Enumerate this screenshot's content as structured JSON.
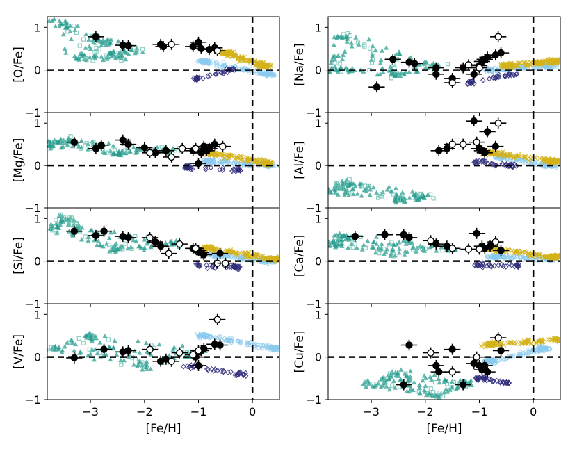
{
  "chart_data": {
    "type": "scatter",
    "xlabel": "[Fe/H]",
    "xlim": [
      -3.8,
      0.5
    ],
    "ylim": [
      -1,
      1.25
    ],
    "x_ticks": [
      -3,
      -2,
      -1,
      0
    ],
    "x_tick_labels": [
      "−3",
      "−2",
      "−1",
      "0"
    ],
    "y_ticks": [
      -1,
      0,
      1
    ],
    "y_tick_labels": [
      "−1",
      "0",
      "1"
    ],
    "reference_lines": {
      "x": 0,
      "y": 0
    },
    "colors": {
      "halo_triangles": "#2a9d8f",
      "halo_squares": "#6fc2b4",
      "thick_disk": "#d4b21a",
      "thin_disk": "#89c9ee",
      "low_alpha": "#2e2a7a",
      "filled_target": "#000000",
      "open_target": "#ffffff"
    },
    "panels": [
      {
        "ylabel": "[O/Fe]",
        "filled": [
          [
            -2.9,
            0.78
          ],
          [
            -2.4,
            0.58
          ],
          [
            -2.3,
            0.57
          ],
          [
            -1.7,
            0.6
          ],
          [
            -1.65,
            0.55
          ],
          [
            -1.1,
            0.55
          ],
          [
            -0.95,
            0.5
          ],
          [
            -1.0,
            0.65
          ],
          [
            -0.8,
            0.48
          ],
          [
            -0.7,
            0.52
          ]
        ],
        "open": [
          [
            -1.5,
            0.6
          ],
          [
            -0.65,
            0.45
          ]
        ],
        "halo_region": [
          [
            -3.6,
            1.15
          ],
          [
            -2.2,
            0.45
          ],
          [
            -2.8,
            0.7
          ],
          [
            -2.5,
            0.3
          ],
          [
            -3.2,
            0.3
          ]
        ],
        "thick_region": [
          [
            -0.5,
            0.4
          ],
          [
            0.2,
            0.1
          ]
        ],
        "thin_region": [
          [
            -0.9,
            0.2
          ],
          [
            0.3,
            -0.1
          ]
        ],
        "lowalpha_region": [
          [
            -1.0,
            -0.2
          ],
          [
            -0.4,
            0.0
          ]
        ]
      },
      {
        "ylabel": "[Na/Fe]",
        "filled": [
          [
            -2.9,
            -0.4
          ],
          [
            -2.6,
            0.25
          ],
          [
            -2.2,
            0.15
          ],
          [
            -2.3,
            0.18
          ],
          [
            -1.8,
            -0.1
          ],
          [
            -1.8,
            0.05
          ],
          [
            -1.5,
            -0.2
          ],
          [
            -1.3,
            0.05
          ],
          [
            -1.1,
            -0.1
          ],
          [
            -1.0,
            0.1
          ],
          [
            -0.95,
            0.2
          ],
          [
            -0.9,
            0.25
          ],
          [
            -0.85,
            0.3
          ],
          [
            -0.7,
            0.35
          ],
          [
            -0.6,
            0.4
          ]
        ],
        "open": [
          [
            -1.5,
            -0.3
          ],
          [
            -1.2,
            0.12
          ],
          [
            -1.0,
            0.05
          ],
          [
            -0.65,
            0.78
          ]
        ],
        "halo_region": [
          [
            -3.7,
            0.0
          ],
          [
            -1.8,
            0.1
          ],
          [
            -3.5,
            0.8
          ],
          [
            -2.5,
            -0.1
          ]
        ],
        "thick_region": [
          [
            -0.5,
            0.1
          ],
          [
            0.4,
            0.2
          ]
        ],
        "thin_region": [
          [
            -0.8,
            0.0
          ],
          [
            0.3,
            0.1
          ]
        ],
        "lowalpha_region": [
          [
            -1.2,
            -0.3
          ],
          [
            -0.4,
            -0.1
          ]
        ]
      },
      {
        "ylabel": "[Mg/Fe]",
        "filled": [
          [
            -3.3,
            0.55
          ],
          [
            -2.9,
            0.4
          ],
          [
            -2.8,
            0.48
          ],
          [
            -2.4,
            0.6
          ],
          [
            -2.3,
            0.5
          ],
          [
            -2.0,
            0.42
          ],
          [
            -1.8,
            0.3
          ],
          [
            -1.6,
            0.35
          ],
          [
            -1.1,
            0.35
          ],
          [
            -0.95,
            0.3
          ],
          [
            -0.9,
            0.45
          ],
          [
            -0.85,
            0.35
          ],
          [
            -0.8,
            0.4
          ],
          [
            -0.7,
            0.5
          ],
          [
            -1.0,
            0.05
          ]
        ],
        "open": [
          [
            -1.9,
            0.3
          ],
          [
            -1.5,
            0.2
          ],
          [
            -1.3,
            0.4
          ],
          [
            -1.05,
            0.4
          ],
          [
            -0.55,
            0.45
          ]
        ],
        "halo_region": [
          [
            -3.7,
            0.5
          ],
          [
            -1.5,
            0.35
          ],
          [
            -3.5,
            0.6
          ],
          [
            -2.5,
            0.3
          ]
        ],
        "thick_region": [
          [
            -0.8,
            0.3
          ],
          [
            0.3,
            0.05
          ]
        ],
        "thin_region": [
          [
            -0.8,
            0.1
          ],
          [
            0.3,
            0.0
          ]
        ],
        "lowalpha_region": [
          [
            -1.2,
            -0.05
          ],
          [
            -0.3,
            -0.1
          ]
        ]
      },
      {
        "ylabel": "[Al/Fe]",
        "filled": [
          [
            -1.75,
            0.35
          ],
          [
            -1.6,
            0.4
          ],
          [
            -1.3,
            0.5
          ],
          [
            -1.1,
            1.05
          ],
          [
            -1.0,
            0.4
          ],
          [
            -0.95,
            0.35
          ],
          [
            -0.9,
            0.3
          ],
          [
            -0.85,
            0.8
          ],
          [
            -0.7,
            0.45
          ]
        ],
        "open": [
          [
            -1.5,
            0.5
          ],
          [
            -1.3,
            0.5
          ],
          [
            -1.05,
            0.55
          ],
          [
            -0.65,
            1.0
          ]
        ],
        "halo_region": [
          [
            -3.7,
            -0.6
          ],
          [
            -2.0,
            -0.7
          ],
          [
            -3.5,
            -0.4
          ],
          [
            -2.5,
            -0.8
          ]
        ],
        "thick_region": [
          [
            -0.8,
            0.3
          ],
          [
            0.4,
            0.1
          ]
        ],
        "thin_region": [
          [
            -0.6,
            0.2
          ],
          [
            0.3,
            0.0
          ]
        ],
        "lowalpha_region": [
          [
            -1.0,
            0.1
          ],
          [
            -0.4,
            0.0
          ]
        ]
      },
      {
        "ylabel": "[Si/Fe]",
        "filled": [
          [
            -3.3,
            0.7
          ],
          [
            -2.9,
            0.6
          ],
          [
            -2.75,
            0.7
          ],
          [
            -2.4,
            0.58
          ],
          [
            -2.3,
            0.55
          ],
          [
            -1.8,
            0.45
          ],
          [
            -1.7,
            0.35
          ],
          [
            -1.1,
            0.3
          ],
          [
            -1.0,
            0.25
          ],
          [
            -0.95,
            0.2
          ],
          [
            -0.9,
            0.15
          ],
          [
            -0.6,
            0.18
          ]
        ],
        "open": [
          [
            -1.9,
            0.55
          ],
          [
            -1.55,
            0.18
          ],
          [
            -1.35,
            0.4
          ],
          [
            -1.05,
            0.3
          ],
          [
            -0.65,
            -0.05
          ],
          [
            -0.5,
            -0.05
          ]
        ],
        "halo_region": [
          [
            -3.7,
            0.8
          ],
          [
            -1.5,
            0.4
          ],
          [
            -3.5,
            1.0
          ],
          [
            -2.5,
            0.3
          ]
        ],
        "thick_region": [
          [
            -0.8,
            0.3
          ],
          [
            0.4,
            0.05
          ]
        ],
        "thin_region": [
          [
            -0.7,
            0.15
          ],
          [
            0.3,
            0.0
          ]
        ],
        "lowalpha_region": [
          [
            -1.0,
            -0.1
          ],
          [
            -0.3,
            -0.15
          ]
        ]
      },
      {
        "ylabel": "[Ca/Fe]",
        "filled": [
          [
            -3.3,
            0.58
          ],
          [
            -2.75,
            0.62
          ],
          [
            -2.4,
            0.62
          ],
          [
            -2.3,
            0.55
          ],
          [
            -1.8,
            0.4
          ],
          [
            -1.6,
            0.35
          ],
          [
            -1.05,
            0.65
          ],
          [
            -0.95,
            0.35
          ],
          [
            -0.9,
            0.3
          ],
          [
            -0.8,
            0.35
          ],
          [
            -0.6,
            0.25
          ]
        ],
        "open": [
          [
            -1.9,
            0.48
          ],
          [
            -1.5,
            0.3
          ],
          [
            -1.2,
            0.28
          ],
          [
            -1.0,
            0.28
          ],
          [
            -0.7,
            0.45
          ]
        ],
        "halo_region": [
          [
            -3.7,
            0.4
          ],
          [
            -1.5,
            0.3
          ],
          [
            -3.5,
            0.6
          ],
          [
            -2.5,
            0.2
          ]
        ],
        "thick_region": [
          [
            -0.8,
            0.3
          ],
          [
            0.4,
            0.1
          ]
        ],
        "thin_region": [
          [
            -0.7,
            0.1
          ],
          [
            0.3,
            0.05
          ]
        ],
        "lowalpha_region": [
          [
            -1.0,
            -0.1
          ],
          [
            -0.3,
            -0.1
          ]
        ]
      },
      {
        "ylabel": "[V/Fe]",
        "filled": [
          [
            -3.3,
            -0.02
          ],
          [
            -2.75,
            0.18
          ],
          [
            -2.4,
            0.12
          ],
          [
            -2.3,
            0.15
          ],
          [
            -1.7,
            -0.1
          ],
          [
            -1.6,
            -0.05
          ],
          [
            -1.05,
            0.0
          ],
          [
            -1.0,
            -0.2
          ],
          [
            -0.95,
            0.15
          ],
          [
            -0.9,
            0.2
          ],
          [
            -0.7,
            0.3
          ],
          [
            -0.6,
            0.28
          ]
        ],
        "open": [
          [
            -1.9,
            0.18
          ],
          [
            -1.5,
            -0.1
          ],
          [
            -1.35,
            0.1
          ],
          [
            -1.1,
            0.05
          ],
          [
            -1.0,
            0.15
          ],
          [
            -0.65,
            0.88
          ]
        ],
        "halo_region": [
          [
            -3.7,
            0.2
          ],
          [
            -1.0,
            0.1
          ],
          [
            -3.0,
            0.5
          ],
          [
            -2.0,
            -0.2
          ]
        ],
        "thick_region": [],
        "thin_region": [
          [
            -0.9,
            0.5
          ],
          [
            0.4,
            0.2
          ]
        ],
        "lowalpha_region": [
          [
            -1.2,
            -0.2
          ],
          [
            -0.2,
            -0.4
          ]
        ]
      },
      {
        "ylabel": "[Cu/Fe]",
        "filled": [
          [
            -2.4,
            -0.65
          ],
          [
            -2.3,
            0.28
          ],
          [
            -1.8,
            -0.2
          ],
          [
            -1.75,
            -0.35
          ],
          [
            -1.5,
            0.18
          ],
          [
            -1.3,
            -0.65
          ],
          [
            -1.1,
            -0.15
          ],
          [
            -1.0,
            -0.2
          ],
          [
            -0.95,
            -0.3
          ],
          [
            -0.9,
            -0.2
          ],
          [
            -0.85,
            -0.35
          ],
          [
            -0.6,
            0.15
          ]
        ],
        "open": [
          [
            -1.9,
            0.1
          ],
          [
            -1.5,
            -0.35
          ],
          [
            -1.05,
            0.0
          ],
          [
            -0.65,
            0.45
          ]
        ],
        "halo_region": [
          [
            -3.0,
            -0.6
          ],
          [
            -1.2,
            -0.6
          ],
          [
            -2.5,
            -0.4
          ],
          [
            -1.8,
            -0.9
          ]
        ],
        "thick_region": [
          [
            -0.8,
            0.3
          ],
          [
            0.5,
            0.4
          ]
        ],
        "thin_region": [
          [
            -0.8,
            -0.1
          ],
          [
            0.2,
            0.2
          ]
        ],
        "lowalpha_region": [
          [
            -1.0,
            -0.5
          ],
          [
            -0.5,
            -0.6
          ]
        ]
      }
    ]
  }
}
